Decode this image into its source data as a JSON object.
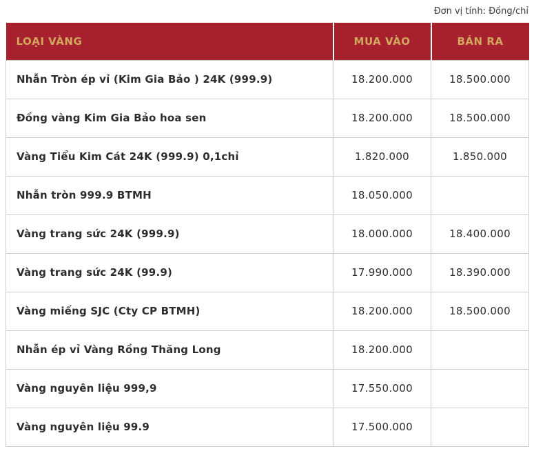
{
  "unit_note": "Đơn vị tính: Đồng/chỉ",
  "table": {
    "headers": [
      "LOẠI VÀNG",
      "MUA VÀO",
      "BÁN RA"
    ],
    "rows": [
      {
        "name": "Nhẫn Tròn ép vỉ (Kim Gia Bảo ) 24K (999.9)",
        "buy": "18.200.000",
        "sell": "18.500.000"
      },
      {
        "name": "Đồng vàng Kim Gia Bảo hoa sen",
        "buy": "18.200.000",
        "sell": "18.500.000"
      },
      {
        "name": "Vàng Tiểu Kim Cát 24K (999.9) 0,1chỉ",
        "buy": "1.820.000",
        "sell": "1.850.000"
      },
      {
        "name": "Nhẫn tròn 999.9 BTMH",
        "buy": "18.050.000",
        "sell": ""
      },
      {
        "name": "Vàng trang sức 24K (999.9)",
        "buy": "18.000.000",
        "sell": "18.400.000"
      },
      {
        "name": "Vàng trang sức 24K (99.9)",
        "buy": "17.990.000",
        "sell": "18.390.000"
      },
      {
        "name": "Vàng miếng SJC (Cty CP BTMH)",
        "buy": "18.200.000",
        "sell": "18.500.000"
      },
      {
        "name": "Nhẫn ép vỉ Vàng Rồng Thăng Long",
        "buy": "18.200.000",
        "sell": ""
      },
      {
        "name": "Vàng nguyên liệu 999,9",
        "buy": "17.550.000",
        "sell": ""
      },
      {
        "name": "Vàng nguyên liệu 99.9",
        "buy": "17.500.000",
        "sell": ""
      }
    ]
  },
  "colors": {
    "header_bg": "#A6202E",
    "header_text": "#D2A85C",
    "body_text": "#2D2D2D",
    "border": "#CBCBCB"
  }
}
